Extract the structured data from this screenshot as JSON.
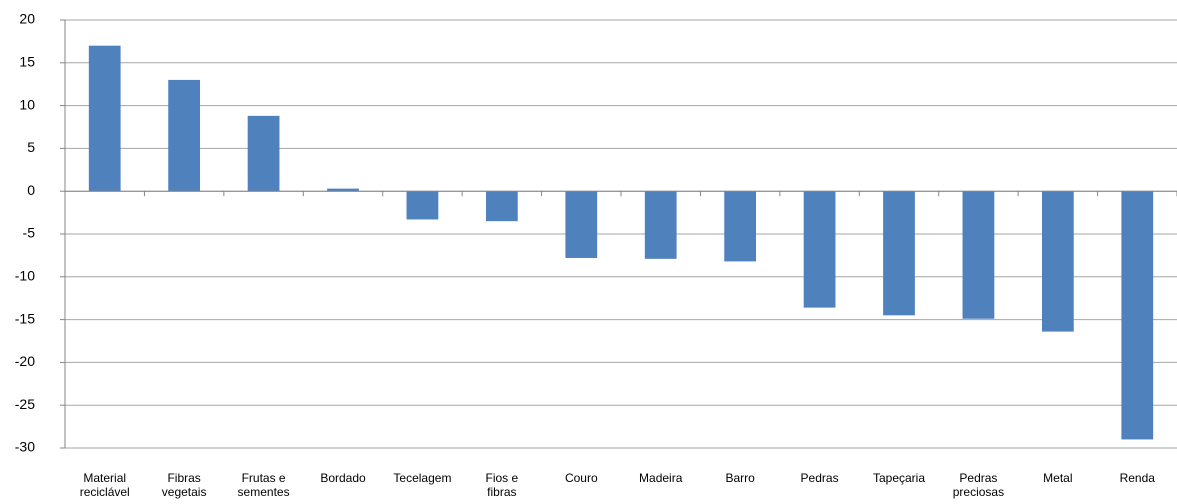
{
  "chart_data": {
    "type": "bar",
    "categories": [
      "Material reciclável",
      "Fibras vegetais",
      "Frutas e sementes",
      "Bordado",
      "Tecelagem",
      "Fios e fibras",
      "Couro",
      "Madeira",
      "Barro",
      "Pedras",
      "Tapeçaria",
      "Pedras preciosas",
      "Metal",
      "Renda"
    ],
    "values": [
      17,
      13,
      8.8,
      0.3,
      -3.3,
      -3.5,
      -7.8,
      -7.9,
      -8.2,
      -13.6,
      -14.5,
      -14.9,
      -16.4,
      -29
    ],
    "color": "#4f81bd",
    "ylim": [
      -30,
      20
    ],
    "yticks": [
      -30,
      -25,
      -20,
      -15,
      -10,
      -5,
      0,
      5,
      10,
      15,
      20
    ],
    "grid": true
  }
}
